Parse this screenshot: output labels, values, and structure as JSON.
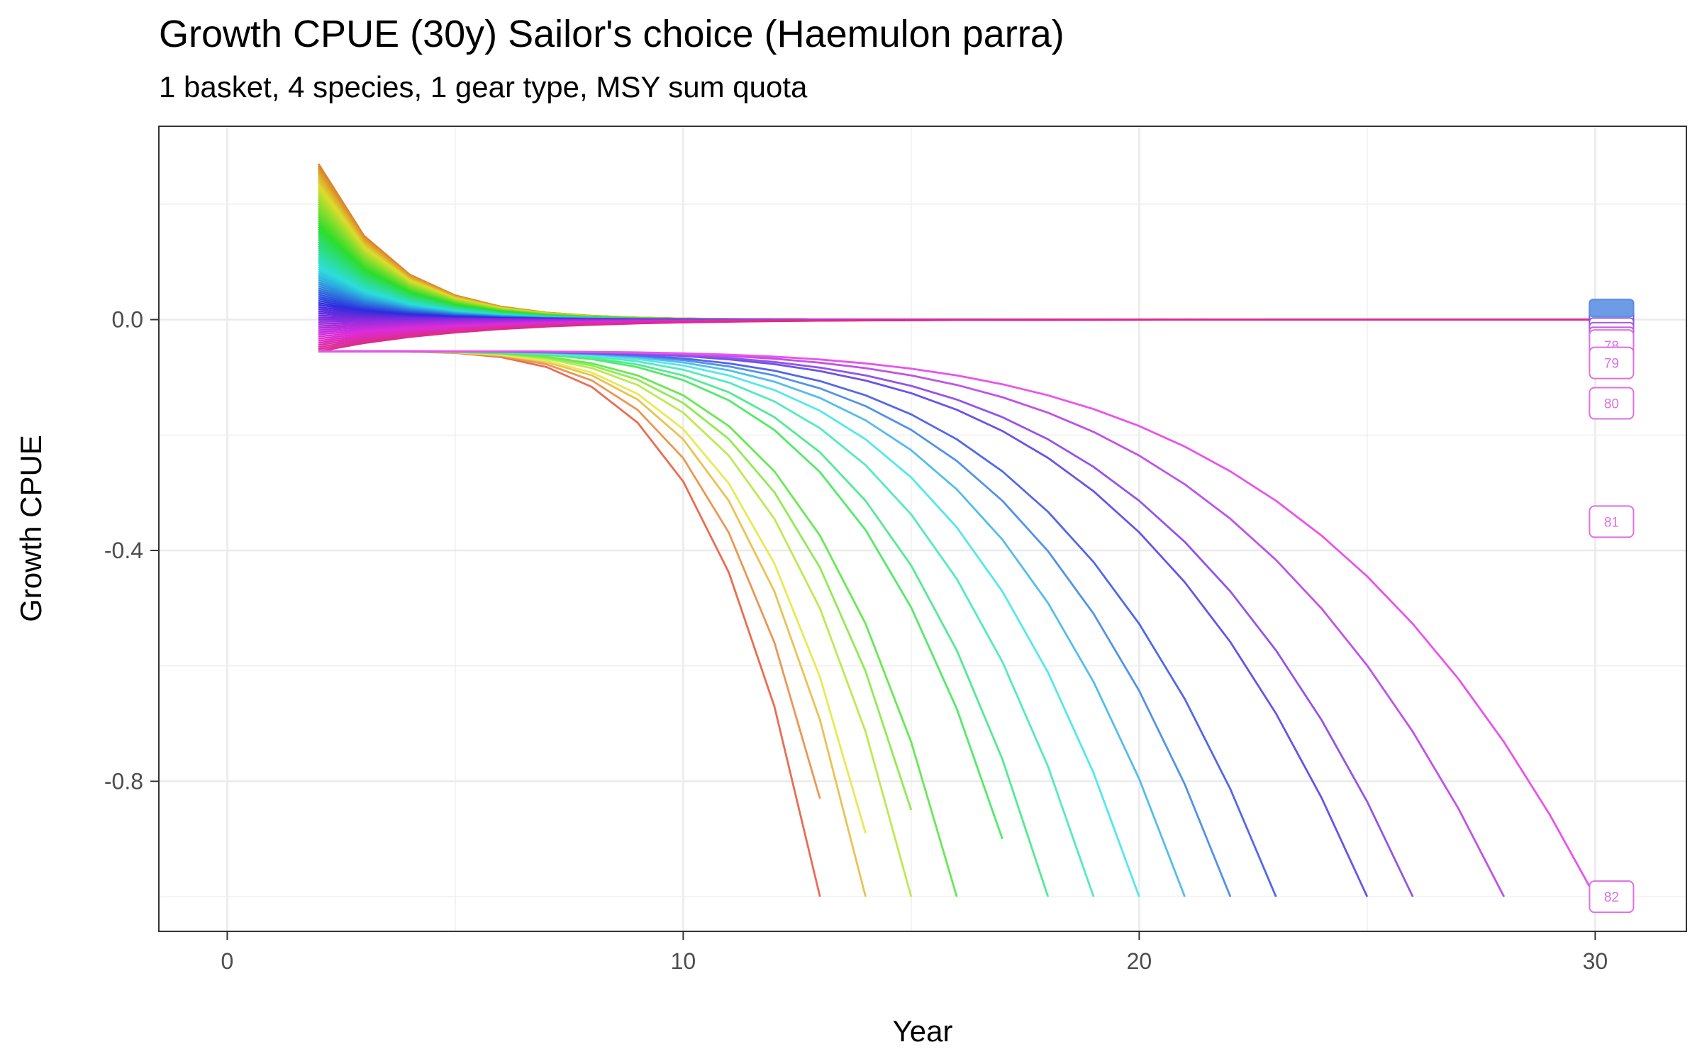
{
  "chart_data": {
    "type": "line",
    "title": "Growth CPUE (30y) Sailor's choice (Haemulon parra)",
    "subtitle": "1 basket, 4 species, 1 gear type, MSY sum quota",
    "xlabel": "Year",
    "ylabel": "Growth CPUE",
    "xlim": [
      -1.5,
      32
    ],
    "ylim": [
      -1.06,
      0.335
    ],
    "x_ticks": [
      0,
      10,
      20,
      30
    ],
    "y_ticks": [
      0.0,
      -0.4,
      -0.8
    ],
    "x_tick_labels": [
      "0",
      "10",
      "20",
      "30"
    ],
    "y_tick_labels": [
      "0.0",
      "-0.4",
      "-0.8"
    ],
    "grid": true,
    "legend": "none",
    "x": [
      2,
      3,
      4,
      5,
      6,
      7,
      8,
      9,
      10,
      11,
      12,
      13,
      14,
      15,
      16,
      17,
      18,
      19,
      20,
      21,
      22,
      23,
      24,
      25,
      26,
      27,
      28,
      29,
      30
    ],
    "fan": {
      "count": 90,
      "top_start": 0.27,
      "bottom_start": -0.055,
      "note": "many overlapping runs colored along a hue gradient, all converging near 0"
    },
    "collapsing_series": [
      {
        "end_year": 13,
        "end_value": -1.0
      },
      {
        "end_year": 13,
        "end_value": -0.83
      },
      {
        "end_year": 14,
        "end_value": -1.0
      },
      {
        "end_year": 14,
        "end_value": -0.89
      },
      {
        "end_year": 15,
        "end_value": -1.0
      },
      {
        "end_year": 15,
        "end_value": -0.85
      },
      {
        "end_year": 16,
        "end_value": -1.0
      },
      {
        "end_year": 17,
        "end_value": -0.9
      },
      {
        "end_year": 18,
        "end_value": -1.0
      },
      {
        "end_year": 19,
        "end_value": -1.0
      },
      {
        "end_year": 20,
        "end_value": -1.0
      },
      {
        "end_year": 21,
        "end_value": -1.0
      },
      {
        "end_year": 22,
        "end_value": -1.0
      },
      {
        "end_year": 23,
        "end_value": -1.0
      },
      {
        "end_year": 25,
        "end_value": -1.0
      },
      {
        "end_year": 26,
        "end_value": -1.0
      },
      {
        "end_year": 28,
        "end_value": -1.0
      },
      {
        "end_year": 30,
        "end_value": -1.0
      }
    ],
    "end_labels": [
      {
        "label": "78",
        "value": -0.045
      },
      {
        "label": "79",
        "value": -0.075
      },
      {
        "label": "80",
        "value": -0.145
      },
      {
        "label": "81",
        "value": -0.35
      },
      {
        "label": "82",
        "value": -1.0
      }
    ],
    "colors": {
      "panel_border": "#333333",
      "grid": "#ebebeb",
      "label_color": "#de70e3"
    }
  }
}
